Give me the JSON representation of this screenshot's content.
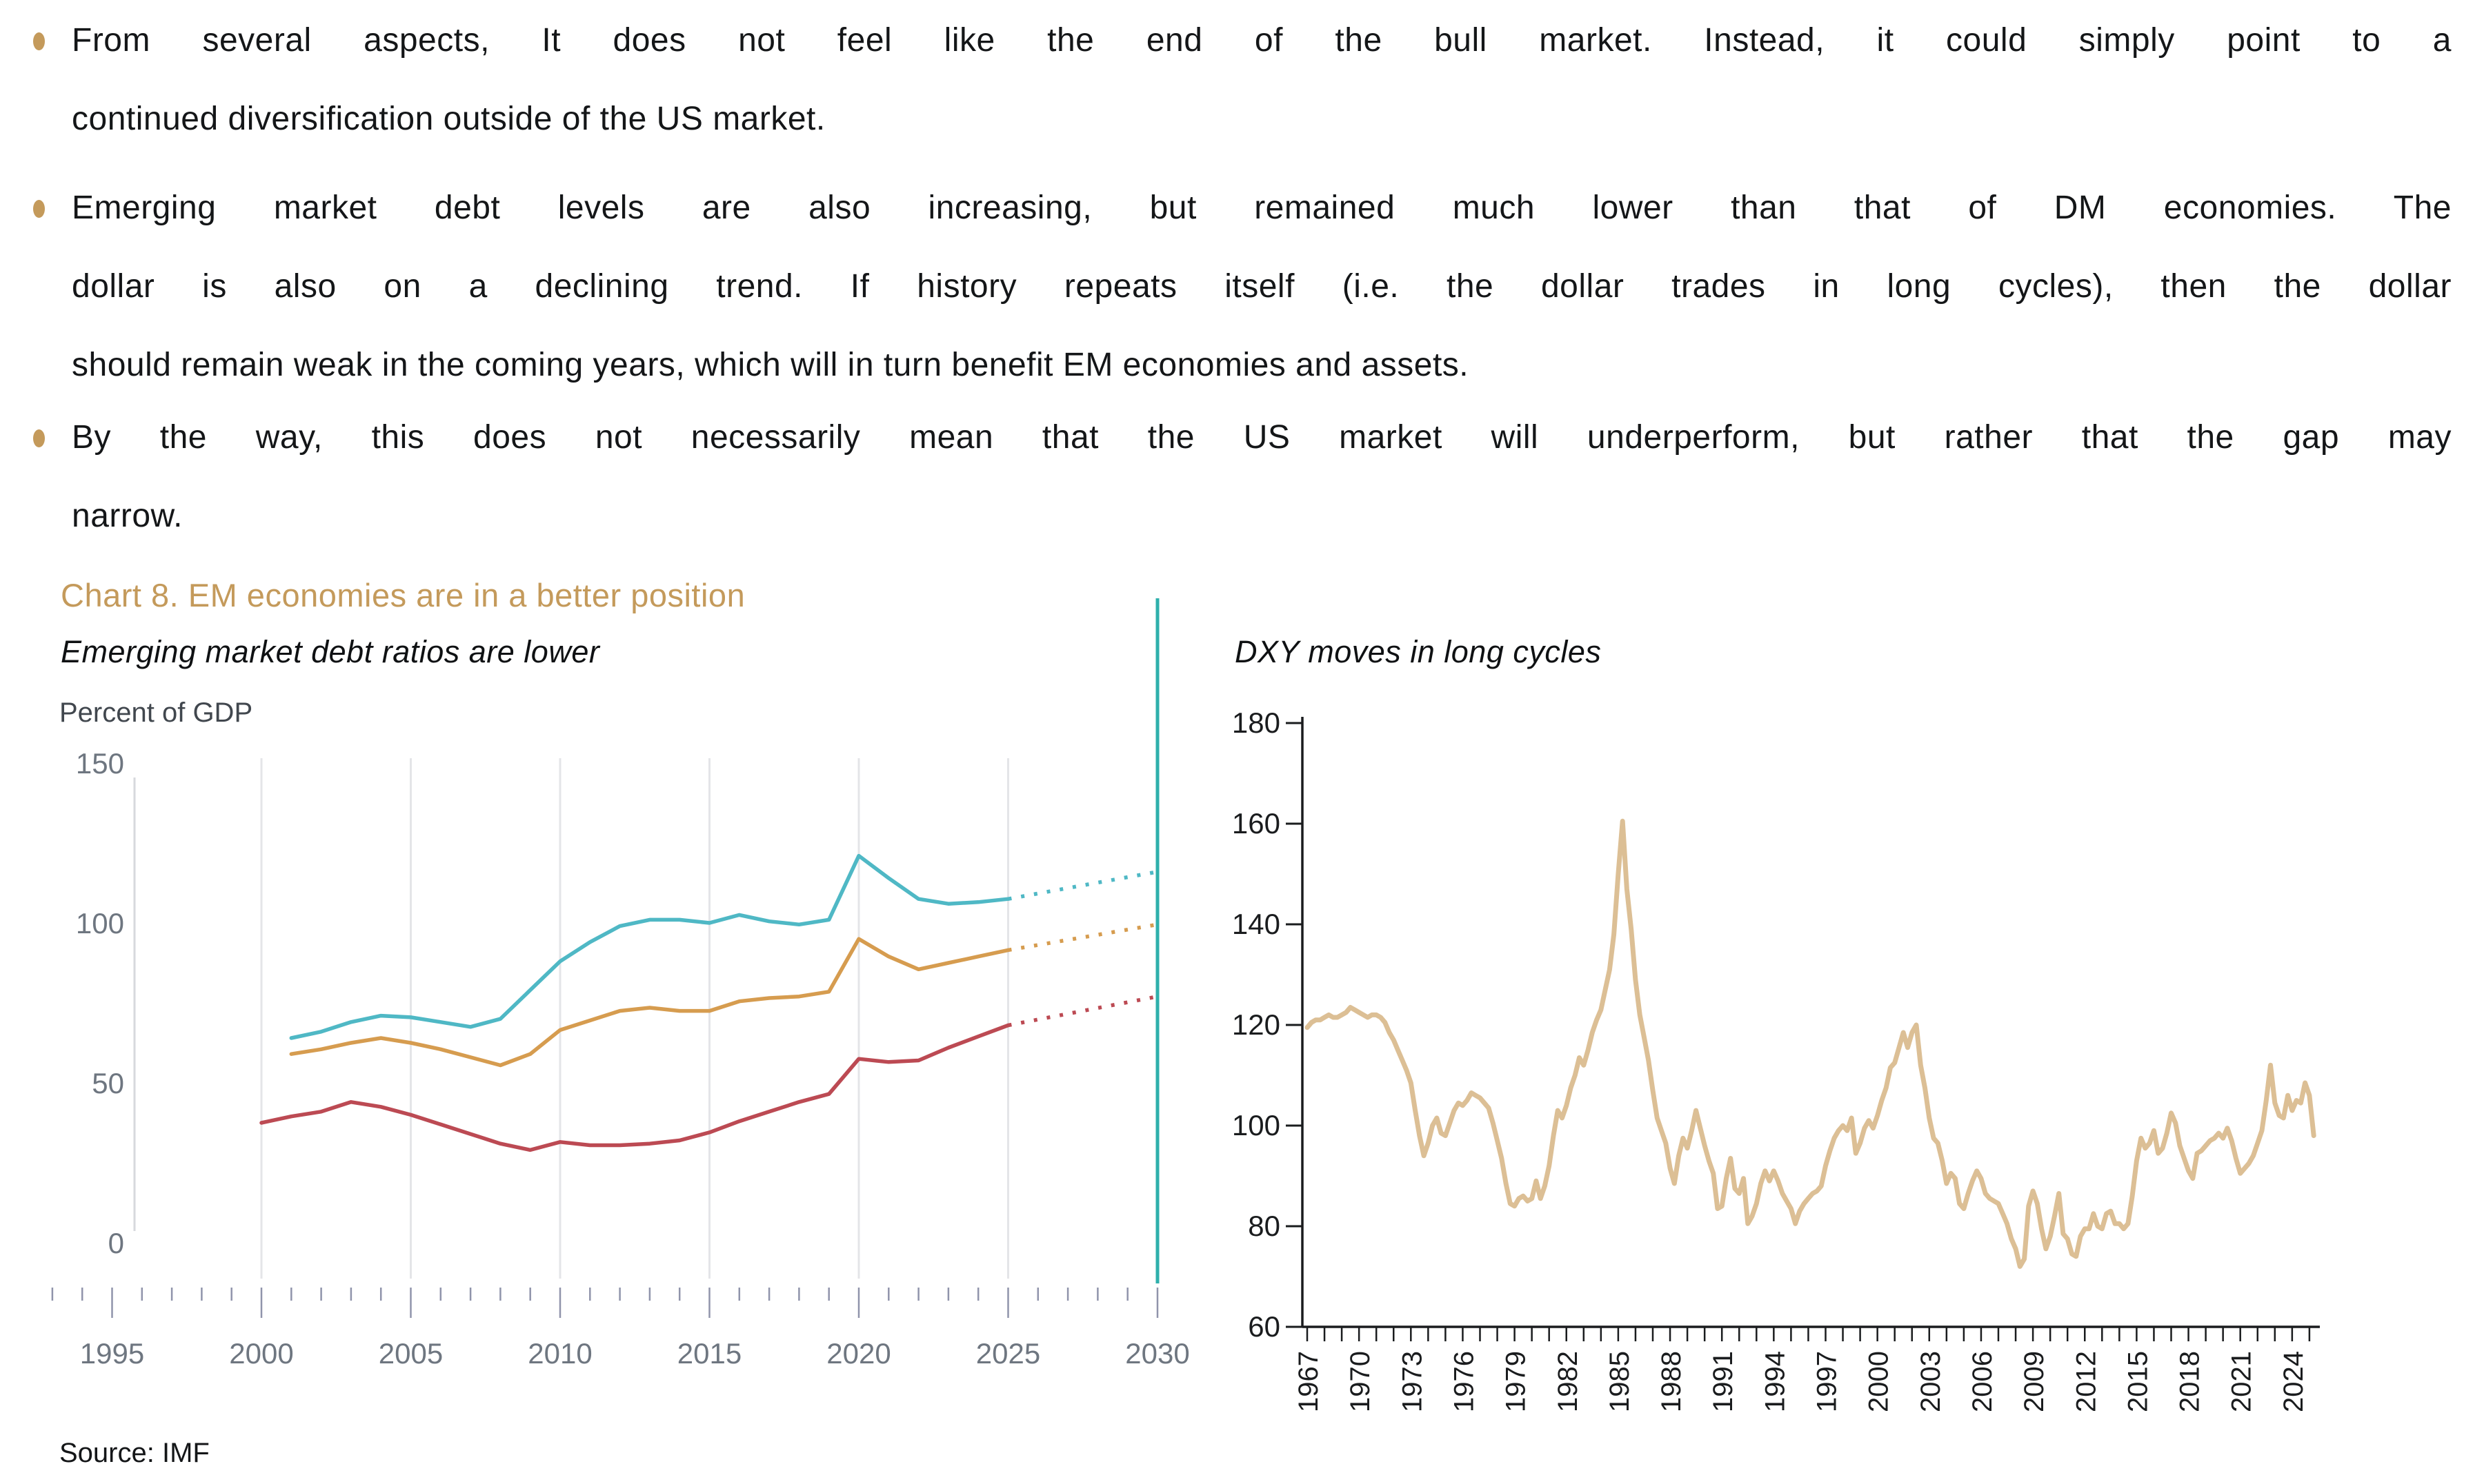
{
  "page": {
    "bullets": [
      [
        "From several aspects, It does not feel like the end of the bull market. Instead, it could simply point to a",
        "continued diversification outside of the US market."
      ],
      [
        "Emerging market debt levels are also increasing, but remained much lower than that of DM economies. The",
        "dollar is also on a declining trend. If history repeats itself (i.e. the dollar trades in long cycles), then the dollar",
        "should remain weak in the coming years, which will in turn benefit EM economies and assets."
      ],
      [
        "By the way, this does not necessarily mean that the US market will underperform, but rather that the gap may",
        "narrow."
      ]
    ],
    "chart_section_title": "Chart 8. EM economies are in a better position",
    "source": "Source: IMF",
    "colors": {
      "accent_tan": "#C49A5B",
      "divider_teal": "#2FB0AC",
      "grid": "#E4E5E8",
      "axis_gray": "#D7D9DD",
      "tick_gray": "#9094AB",
      "label_gray": "#6E7680",
      "right_axis_black": "#1A1C1E"
    }
  },
  "chart_data": [
    {
      "type": "line",
      "title": "Emerging market debt ratios are lower",
      "ylabel": "Percent of GDP",
      "xlabel": "",
      "ylim": [
        0,
        150
      ],
      "xlim": [
        1993,
        2030
      ],
      "grid": "vertical-only",
      "legend_position": "none",
      "y_tick_labels": [
        0,
        50,
        100,
        150
      ],
      "x_tick_labels": [
        1995,
        2000,
        2005,
        2010,
        2015,
        2020,
        2025,
        2030
      ],
      "grid_years": [
        2000,
        2005,
        2010,
        2015,
        2020,
        2025
      ],
      "divider_year": 2030,
      "projection_note": "dotted segments after 2025 are projections",
      "series": [
        {
          "name": "teal-line",
          "color": "#4FB8C5",
          "start_year": 2001,
          "step": 1,
          "values": [
            64,
            66,
            69,
            71,
            70.5,
            69,
            67.5,
            70,
            79,
            88,
            94,
            99,
            101,
            101,
            100,
            102.5,
            100.5,
            99.5,
            101,
            121,
            114,
            107.5,
            106,
            106.5,
            107.5
          ],
          "projection": {
            "start_year": 2025,
            "values": [
              107.5,
              109.2,
              110.9,
              112.6,
              114.3,
              116
            ]
          }
        },
        {
          "name": "orange-line",
          "color": "#D69C4F",
          "start_year": 2001,
          "step": 1,
          "values": [
            59,
            60.5,
            62.5,
            64,
            62.5,
            60.5,
            58,
            55.5,
            59,
            66.5,
            69.5,
            72.5,
            73.5,
            72.5,
            72.5,
            75.5,
            76.5,
            77,
            78.5,
            95,
            89.5,
            85.5,
            87.5,
            89.5,
            91.5
          ],
          "projection": {
            "start_year": 2025,
            "values": [
              91.5,
              93.1,
              94.7,
              96.3,
              97.9,
              99.5
            ]
          }
        },
        {
          "name": "red-line",
          "color": "#BC4A53",
          "start_year": 2000,
          "step": 1,
          "values": [
            37.5,
            39.5,
            41,
            44,
            42.5,
            40,
            37,
            34,
            31,
            29,
            31.5,
            30.5,
            30.5,
            31,
            32,
            34.5,
            38,
            41,
            44,
            46.5,
            57.5,
            56.5,
            57,
            61,
            64.5,
            68
          ],
          "projection": {
            "start_year": 2025,
            "values": [
              68,
              69.8,
              71.6,
              73.4,
              75.2,
              77
            ]
          }
        }
      ]
    },
    {
      "type": "line",
      "title": "DXY moves in long cycles",
      "ylabel": "",
      "xlabel": "",
      "ylim": [
        60,
        180
      ],
      "xlim": [
        1967,
        2025.5
      ],
      "grid": "off",
      "legend_position": "none",
      "y_tick_labels": [
        60,
        80,
        100,
        120,
        140,
        160,
        180
      ],
      "x_tick_labels": [
        1967,
        1970,
        1973,
        1976,
        1979,
        1982,
        1985,
        1988,
        1991,
        1994,
        1997,
        2000,
        2003,
        2006,
        2009,
        2012,
        2015,
        2018,
        2021,
        2024
      ],
      "series": [
        {
          "name": "dxy-line",
          "color": "#DCBF95",
          "start_year": 1967,
          "step": 0.25,
          "values": [
            119.5,
            120.5,
            121,
            121,
            121.5,
            122,
            121.5,
            121.5,
            122,
            122.5,
            123.5,
            123,
            122.5,
            122,
            121.5,
            122,
            122,
            121.5,
            120.5,
            118.5,
            117,
            115,
            113,
            111,
            108.5,
            103,
            98,
            94,
            96.5,
            100,
            101.5,
            98.5,
            98,
            100.5,
            103,
            104.5,
            104,
            105,
            106.5,
            106,
            105.5,
            104.5,
            103.5,
            100.5,
            97,
            93.5,
            88.5,
            84.5,
            84,
            85.5,
            86,
            85,
            85.5,
            89,
            85.5,
            88,
            92,
            98,
            103,
            101.5,
            104,
            107.5,
            110,
            113.5,
            112,
            115,
            118.5,
            121,
            123,
            127,
            131,
            138,
            150,
            160.5,
            147,
            139,
            129,
            122,
            117.5,
            113,
            107,
            101.5,
            99,
            96.5,
            91.5,
            88.5,
            94,
            97.5,
            95.5,
            99,
            103,
            99.5,
            96,
            93,
            90.5,
            83.5,
            84,
            89.5,
            93.5,
            87.5,
            86.5,
            89.5,
            80.5,
            82,
            84.5,
            88.5,
            91,
            89,
            91,
            89,
            86.5,
            85,
            83.5,
            80.5,
            83,
            84.5,
            85.5,
            86.5,
            87,
            88,
            92,
            95,
            97.5,
            99,
            100,
            99,
            101.5,
            94.5,
            96.5,
            99.5,
            101,
            99.5,
            102,
            105,
            107.5,
            111.5,
            112.5,
            115.5,
            118.5,
            115.5,
            118.5,
            120,
            112,
            107.5,
            101.5,
            97.5,
            96.5,
            93,
            88.5,
            90.5,
            89.5,
            84.5,
            83.5,
            86.5,
            89,
            91,
            89.5,
            86.5,
            85.5,
            85,
            84.5,
            82.5,
            80.5,
            77.5,
            75.5,
            72,
            73.5,
            84,
            87,
            84.5,
            79.5,
            75.5,
            78,
            82,
            86.5,
            78.5,
            77.5,
            74.5,
            74,
            78,
            79.5,
            79.5,
            82.5,
            80,
            79.5,
            82.5,
            83,
            80.5,
            80.5,
            79.5,
            80.5,
            86,
            93,
            97.5,
            95.5,
            96.5,
            99,
            94.5,
            95.5,
            98.5,
            102.5,
            100.5,
            96,
            93.5,
            91,
            89.5,
            94.5,
            95,
            96,
            97,
            97.5,
            98.5,
            97.5,
            99.5,
            97,
            93.5,
            90.5,
            91.5,
            92.5,
            94,
            96.5,
            99,
            105,
            112,
            104.5,
            102,
            101.5,
            106,
            103,
            105,
            104.5,
            108.5,
            106,
            98
          ]
        }
      ]
    }
  ]
}
